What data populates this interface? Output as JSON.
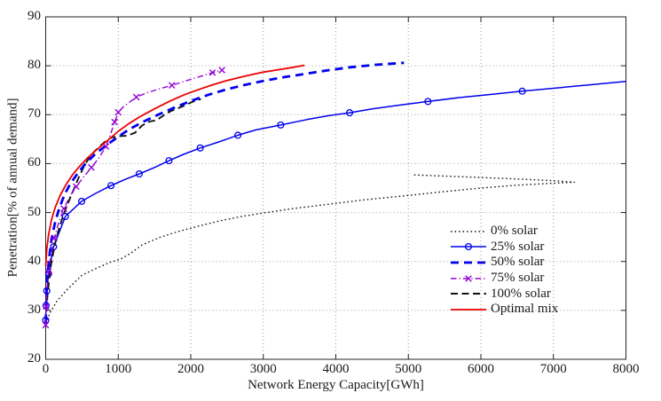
{
  "figure": {
    "background": "#ffffff",
    "axis_color": "#222222",
    "grid_color": "#9a9a9a",
    "text_color": "#1a1a1a"
  },
  "chart_data": {
    "type": "line",
    "title": "",
    "xlabel": "Network Energy Capacity[GWh]",
    "ylabel": "Penetration[% of annual demand]",
    "xlim": [
      0,
      8000
    ],
    "ylim": [
      20,
      90
    ],
    "xticks": [
      0,
      1000,
      2000,
      3000,
      4000,
      5000,
      6000,
      7000,
      8000
    ],
    "xtick_labels": [
      "0",
      "1000",
      "2000",
      "3000",
      "4000",
      "5000",
      "6000",
      "7000",
      "8000"
    ],
    "yticks": [
      20,
      30,
      40,
      50,
      60,
      70,
      80,
      90
    ],
    "ytick_labels": [
      "20",
      "30",
      "40",
      "50",
      "60",
      "70",
      "80",
      "90"
    ],
    "grid": true,
    "legend_position": "inside-right",
    "series": [
      {
        "name": "0% solar",
        "color": "#161616",
        "line_style": "dotted",
        "line_width": 1.4,
        "marker": "none",
        "points": [
          [
            0,
            27.3
          ],
          [
            60,
            29.5
          ],
          [
            150,
            31.8
          ],
          [
            300,
            34.3
          ],
          [
            500,
            37.2
          ],
          [
            700,
            38.6
          ],
          [
            900,
            39.9
          ],
          [
            1020,
            40.4
          ],
          [
            1165,
            41.6
          ],
          [
            1330,
            43.4
          ],
          [
            1570,
            44.9
          ],
          [
            1820,
            46.1
          ],
          [
            2100,
            47.2
          ],
          [
            2400,
            48.3
          ],
          [
            2700,
            49.2
          ],
          [
            3000,
            49.9
          ],
          [
            3400,
            50.8
          ],
          [
            3900,
            51.7
          ],
          [
            4400,
            52.6
          ],
          [
            5000,
            53.5
          ],
          [
            5500,
            54.3
          ],
          [
            6000,
            55.0
          ],
          [
            6500,
            55.6
          ],
          [
            7000,
            56.0
          ],
          [
            7290,
            56.2
          ],
          [
            7000,
            56.5
          ],
          [
            6600,
            56.8
          ],
          [
            6100,
            57.1
          ],
          [
            5600,
            57.4
          ],
          [
            5060,
            57.7
          ]
        ]
      },
      {
        "name": "25% solar",
        "color": "#0000ee",
        "line_style": "solid",
        "line_width": 1.5,
        "marker": "circle",
        "points": [
          [
            0,
            28
          ],
          [
            5,
            31
          ],
          [
            15,
            34
          ],
          [
            40,
            37.5
          ],
          [
            108,
            43
          ],
          [
            272,
            49.2
          ],
          [
            496,
            52.3
          ],
          [
            700,
            54
          ],
          [
            900,
            55.5
          ],
          [
            1100,
            56.8
          ],
          [
            1290,
            57.9
          ],
          [
            1500,
            59.2
          ],
          [
            1700,
            60.6
          ],
          [
            1900,
            61.9
          ],
          [
            2130,
            63.2
          ],
          [
            2400,
            64.5
          ],
          [
            2650,
            65.8
          ],
          [
            2900,
            66.9
          ],
          [
            3240,
            67.9
          ],
          [
            3600,
            69
          ],
          [
            3900,
            69.8
          ],
          [
            4190,
            70.4
          ],
          [
            4500,
            71.2
          ],
          [
            4900,
            72
          ],
          [
            5270,
            72.7
          ],
          [
            5700,
            73.5
          ],
          [
            6100,
            74.1
          ],
          [
            6570,
            74.8
          ],
          [
            7000,
            75.4
          ],
          [
            7500,
            76.1
          ],
          [
            8000,
            76.8
          ]
        ],
        "marker_points": [
          [
            0,
            28
          ],
          [
            5,
            31
          ],
          [
            15,
            34
          ],
          [
            40,
            37.5
          ],
          [
            108,
            43
          ],
          [
            272,
            49.2
          ],
          [
            496,
            52.3
          ],
          [
            900,
            55.5
          ],
          [
            1290,
            57.9
          ],
          [
            1700,
            60.6
          ],
          [
            2130,
            63.2
          ],
          [
            2650,
            65.8
          ],
          [
            3240,
            67.9
          ],
          [
            4190,
            70.4
          ],
          [
            5270,
            72.7
          ],
          [
            6570,
            74.8
          ]
        ]
      },
      {
        "name": "50% solar",
        "color": "#0000ee",
        "line_style": "dashed-thick",
        "line_width": 2.8,
        "marker": "none",
        "points": [
          [
            0,
            27.5
          ],
          [
            8,
            32
          ],
          [
            20,
            36
          ],
          [
            45,
            40.5
          ],
          [
            80,
            44.5
          ],
          [
            130,
            48
          ],
          [
            190,
            51
          ],
          [
            260,
            53.7
          ],
          [
            340,
            55.9
          ],
          [
            440,
            58
          ],
          [
            560,
            60.2
          ],
          [
            700,
            62.2
          ],
          [
            850,
            63.9
          ],
          [
            1000,
            65.5
          ],
          [
            1150,
            67
          ],
          [
            1350,
            68.6
          ],
          [
            1550,
            70
          ],
          [
            1750,
            71.3
          ],
          [
            2000,
            72.8
          ],
          [
            2250,
            74.1
          ],
          [
            2500,
            75.2
          ],
          [
            2750,
            76.1
          ],
          [
            3000,
            76.9
          ],
          [
            3300,
            77.7
          ],
          [
            3600,
            78.4
          ],
          [
            3900,
            79.1
          ],
          [
            4200,
            79.7
          ],
          [
            4550,
            80.2
          ],
          [
            4940,
            80.6
          ]
        ]
      },
      {
        "name": "75% solar",
        "color": "#9400d3",
        "line_style": "dashdot",
        "line_width": 1.4,
        "marker": "x",
        "points": [
          [
            0,
            27
          ],
          [
            6,
            30.8
          ],
          [
            18,
            34.5
          ],
          [
            40,
            38
          ],
          [
            75,
            41.5
          ],
          [
            120,
            44.8
          ],
          [
            180,
            48
          ],
          [
            250,
            50.8
          ],
          [
            330,
            53.2
          ],
          [
            420,
            55.3
          ],
          [
            520,
            57.2
          ],
          [
            630,
            59.2
          ],
          [
            740,
            61.3
          ],
          [
            830,
            63.5
          ],
          [
            900,
            66.3
          ],
          [
            950,
            68.5
          ],
          [
            1000,
            70.5
          ],
          [
            1070,
            71.6
          ],
          [
            1150,
            72.5
          ],
          [
            1250,
            73.6
          ],
          [
            1400,
            74.5
          ],
          [
            1550,
            75.2
          ],
          [
            1740,
            76
          ],
          [
            1950,
            77
          ],
          [
            2150,
            77.9
          ],
          [
            2300,
            78.6
          ],
          [
            2430,
            79.1
          ]
        ],
        "marker_points": [
          [
            0,
            27
          ],
          [
            6,
            30.8
          ],
          [
            40,
            38
          ],
          [
            120,
            44.8
          ],
          [
            250,
            50.8
          ],
          [
            420,
            55.3
          ],
          [
            630,
            59.2
          ],
          [
            830,
            63.5
          ],
          [
            950,
            68.5
          ],
          [
            1000,
            70.5
          ],
          [
            1250,
            73.6
          ],
          [
            1740,
            76
          ],
          [
            2300,
            78.6
          ],
          [
            2430,
            79.1
          ]
        ]
      },
      {
        "name": "100% solar",
        "color": "#111111",
        "line_style": "dashed",
        "line_width": 1.9,
        "marker": "none",
        "points": [
          [
            0,
            27.5
          ],
          [
            10,
            30
          ],
          [
            25,
            33
          ],
          [
            45,
            36
          ],
          [
            70,
            39
          ],
          [
            100,
            41.5
          ],
          [
            140,
            44.3
          ],
          [
            190,
            47
          ],
          [
            250,
            49.7
          ],
          [
            310,
            52
          ],
          [
            380,
            54.5
          ],
          [
            450,
            57
          ],
          [
            530,
            59.5
          ],
          [
            620,
            61.7
          ],
          [
            720,
            63.2
          ],
          [
            820,
            64.5
          ],
          [
            900,
            65.3
          ],
          [
            1000,
            65.6
          ],
          [
            1120,
            65.7
          ],
          [
            1230,
            66.3
          ],
          [
            1330,
            67.8
          ],
          [
            1430,
            68.6
          ],
          [
            1530,
            68.9
          ],
          [
            1620,
            69.8
          ],
          [
            1720,
            70.7
          ],
          [
            1820,
            71.3
          ],
          [
            1920,
            71.9
          ],
          [
            2020,
            72.6
          ],
          [
            2140,
            73.2
          ]
        ]
      },
      {
        "name": "Optimal mix",
        "color": "#ee0000",
        "line_style": "solid",
        "line_width": 1.8,
        "marker": "none",
        "points": [
          [
            0,
            39
          ],
          [
            15,
            42.5
          ],
          [
            40,
            45.5
          ],
          [
            80,
            48.5
          ],
          [
            130,
            51
          ],
          [
            200,
            53.5
          ],
          [
            280,
            55.7
          ],
          [
            370,
            57.7
          ],
          [
            470,
            59.5
          ],
          [
            580,
            61.2
          ],
          [
            700,
            62.8
          ],
          [
            850,
            64.7
          ],
          [
            1000,
            66.6
          ],
          [
            1150,
            68.2
          ],
          [
            1300,
            69.6
          ],
          [
            1500,
            71.2
          ],
          [
            1700,
            72.7
          ],
          [
            1900,
            74
          ],
          [
            2100,
            75.1
          ],
          [
            2300,
            76.1
          ],
          [
            2500,
            77
          ],
          [
            2750,
            77.9
          ],
          [
            3000,
            78.7
          ],
          [
            3250,
            79.3
          ],
          [
            3420,
            79.7
          ],
          [
            3568,
            80.1
          ]
        ]
      }
    ]
  }
}
